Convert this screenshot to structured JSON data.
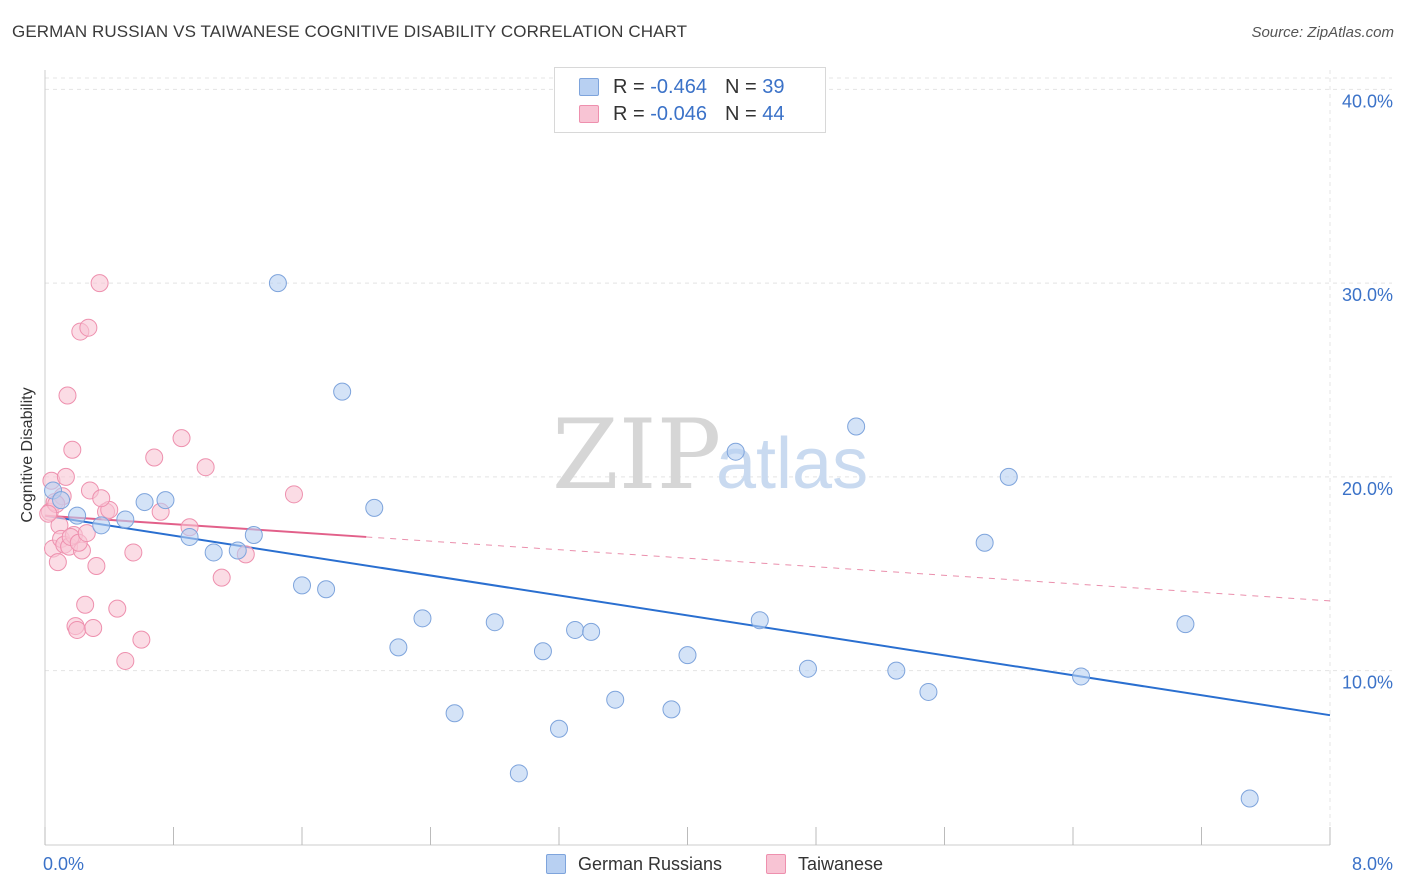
{
  "title": "GERMAN RUSSIAN VS TAIWANESE COGNITIVE DISABILITY CORRELATION CHART",
  "source": "Source: ZipAtlas.com",
  "watermark": {
    "zip": "ZIP",
    "atlas": "atlas"
  },
  "legend": {
    "rows": [
      {
        "r_label": "R = ",
        "r_value": "-0.464",
        "n_label": "N = ",
        "n_value": "39"
      },
      {
        "r_label": "R = ",
        "r_value": "-0.046",
        "n_label": "N = ",
        "n_value": "44"
      }
    ]
  },
  "colors": {
    "blue_fill": "#b8d0f2",
    "blue_stroke": "#7ea4dc",
    "blue_line": "#2a6fd0",
    "pink_fill": "#f8c4d4",
    "pink_stroke": "#ee90ae",
    "pink_line": "#e2608a",
    "grid": "#e4e4e4",
    "axis_text": "#3b72c8"
  },
  "chart_data": {
    "type": "scatter",
    "title": "GERMAN RUSSIAN VS TAIWANESE COGNITIVE DISABILITY CORRELATION CHART",
    "xlabel": "",
    "ylabel": "Cognitive Disability",
    "xlim": [
      0.0,
      8.0
    ],
    "ylim": [
      1.0,
      41.0
    ],
    "x_tick_labels": [
      "0.0%",
      "8.0%"
    ],
    "y_ticks": [
      10.0,
      20.0,
      30.0,
      40.0
    ],
    "y_tick_labels": [
      "10.0%",
      "20.0%",
      "30.0%",
      "40.0%"
    ],
    "grid": true,
    "legend_position": "top-center",
    "series": [
      {
        "name": "German Russians",
        "color": "#b8d0f2",
        "trend": {
          "x": [
            0.0,
            8.0
          ],
          "y": [
            18.0,
            7.7
          ],
          "style": "solid"
        },
        "points": [
          [
            0.05,
            19.3
          ],
          [
            0.1,
            18.8
          ],
          [
            0.2,
            18.0
          ],
          [
            0.35,
            17.5
          ],
          [
            0.5,
            17.8
          ],
          [
            0.62,
            18.7
          ],
          [
            0.75,
            18.8
          ],
          [
            0.9,
            16.9
          ],
          [
            1.05,
            16.1
          ],
          [
            1.2,
            16.2
          ],
          [
            1.3,
            17.0
          ],
          [
            1.45,
            30.0
          ],
          [
            1.6,
            14.4
          ],
          [
            1.75,
            14.2
          ],
          [
            1.85,
            24.4
          ],
          [
            2.05,
            18.4
          ],
          [
            2.2,
            11.2
          ],
          [
            2.35,
            12.7
          ],
          [
            2.55,
            7.8
          ],
          [
            2.8,
            12.5
          ],
          [
            2.95,
            4.7
          ],
          [
            3.1,
            11.0
          ],
          [
            3.2,
            7.0
          ],
          [
            3.3,
            12.1
          ],
          [
            3.4,
            12.0
          ],
          [
            3.55,
            8.5
          ],
          [
            3.9,
            8.0
          ],
          [
            4.0,
            10.8
          ],
          [
            4.3,
            21.3
          ],
          [
            4.45,
            12.6
          ],
          [
            4.75,
            10.1
          ],
          [
            5.05,
            22.6
          ],
          [
            5.3,
            10.0
          ],
          [
            5.5,
            8.9
          ],
          [
            5.85,
            16.6
          ],
          [
            6.0,
            20.0
          ],
          [
            6.45,
            9.7
          ],
          [
            7.1,
            12.4
          ],
          [
            7.5,
            3.4
          ]
        ]
      },
      {
        "name": "Taiwanese",
        "color": "#f8c4d4",
        "trend": {
          "x": [
            0.0,
            2.0
          ],
          "y": [
            18.0,
            16.9
          ],
          "style": "solid",
          "extension": {
            "x": [
              2.0,
              8.0
            ],
            "y": [
              16.9,
              13.6
            ],
            "style": "dashed"
          }
        },
        "points": [
          [
            0.03,
            18.2
          ],
          [
            0.04,
            19.8
          ],
          [
            0.05,
            16.3
          ],
          [
            0.06,
            18.7
          ],
          [
            0.08,
            15.6
          ],
          [
            0.09,
            17.5
          ],
          [
            0.1,
            16.8
          ],
          [
            0.11,
            19.0
          ],
          [
            0.12,
            16.5
          ],
          [
            0.13,
            20.0
          ],
          [
            0.14,
            24.2
          ],
          [
            0.15,
            16.4
          ],
          [
            0.17,
            21.4
          ],
          [
            0.18,
            17.0
          ],
          [
            0.19,
            12.3
          ],
          [
            0.2,
            12.1
          ],
          [
            0.22,
            27.5
          ],
          [
            0.23,
            16.2
          ],
          [
            0.25,
            13.4
          ],
          [
            0.27,
            27.7
          ],
          [
            0.28,
            19.3
          ],
          [
            0.3,
            12.2
          ],
          [
            0.32,
            15.4
          ],
          [
            0.34,
            30.0
          ],
          [
            0.38,
            18.2
          ],
          [
            0.4,
            18.3
          ],
          [
            0.45,
            13.2
          ],
          [
            0.5,
            10.5
          ],
          [
            0.55,
            16.1
          ],
          [
            0.6,
            11.6
          ],
          [
            0.68,
            21.0
          ],
          [
            0.72,
            18.2
          ],
          [
            0.85,
            22.0
          ],
          [
            0.9,
            17.4
          ],
          [
            1.0,
            20.5
          ],
          [
            1.1,
            14.8
          ],
          [
            1.25,
            16.0
          ],
          [
            1.55,
            19.1
          ],
          [
            0.07,
            18.6
          ],
          [
            0.16,
            16.9
          ],
          [
            0.21,
            16.6
          ],
          [
            0.02,
            18.1
          ],
          [
            0.26,
            17.1
          ],
          [
            0.35,
            18.9
          ]
        ]
      }
    ]
  }
}
